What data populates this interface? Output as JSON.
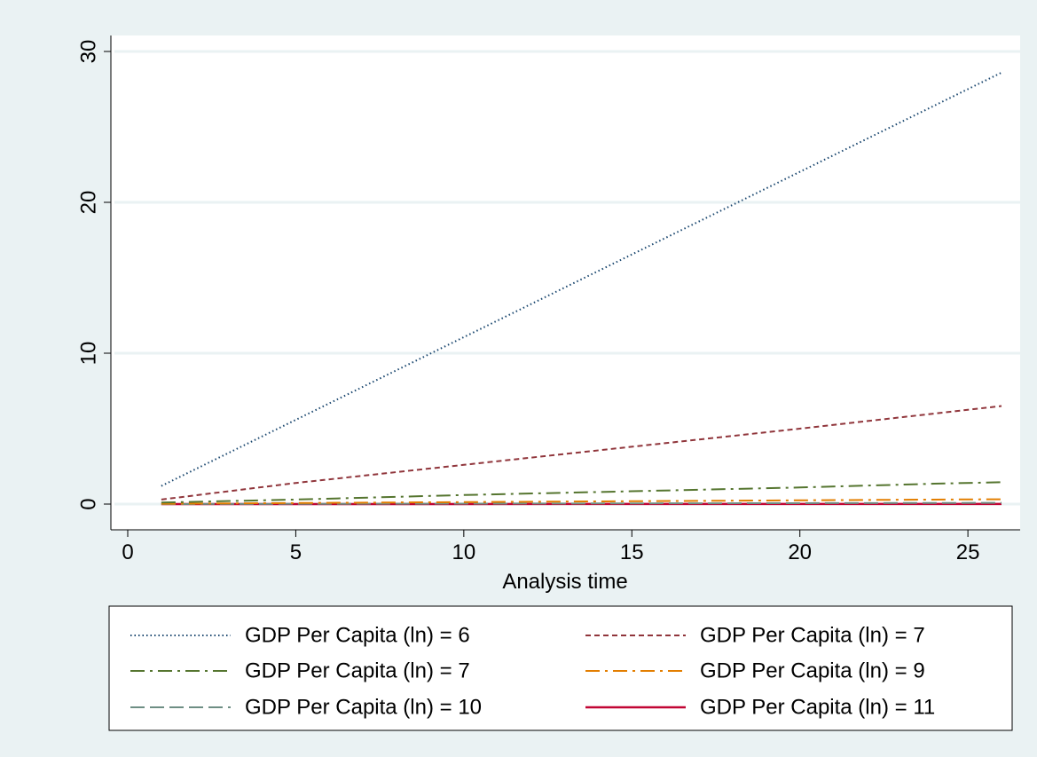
{
  "chart_data": {
    "type": "line",
    "title": "",
    "xlabel": "Analysis time",
    "ylabel": "",
    "xlim": [
      0,
      26
    ],
    "ylim": [
      0,
      30
    ],
    "x_ticks": [
      0,
      5,
      10,
      15,
      20,
      25
    ],
    "y_ticks": [
      0,
      10,
      20,
      30
    ],
    "grid": "horizontal",
    "legend_position": "bottom",
    "legend_columns": 2,
    "colors": {
      "background": "#eaf2f3",
      "plot_background": "#ffffff",
      "grid": "#eaf2f3"
    },
    "series": [
      {
        "name": "GDP Per Capita (ln) = 6",
        "color": "#1a476f",
        "style": "dot",
        "x": [
          1,
          26
        ],
        "y": [
          1.2,
          28.6
        ]
      },
      {
        "name": "GDP Per Capita (ln) = 7",
        "color": "#90353b",
        "style": "dash",
        "x": [
          1,
          5,
          10,
          15,
          20,
          26
        ],
        "y": [
          0.3,
          1.4,
          2.6,
          3.8,
          5.0,
          6.5
        ]
      },
      {
        "name": "GDP Per Capita (ln) = 7",
        "color": "#55752f",
        "style": "longdash-dot",
        "x": [
          1,
          5,
          10,
          15,
          20,
          24,
          26
        ],
        "y": [
          0.1,
          0.3,
          0.6,
          0.85,
          1.1,
          1.35,
          1.45
        ]
      },
      {
        "name": "GDP Per Capita (ln) = 9",
        "color": "#e37e00",
        "style": "longdash-dot",
        "x": [
          1,
          5,
          10,
          15,
          20,
          26
        ],
        "y": [
          0.02,
          0.07,
          0.13,
          0.19,
          0.25,
          0.32
        ]
      },
      {
        "name": "GDP Per Capita (ln) = 10",
        "color": "#6e8e84",
        "style": "longdash",
        "x": [
          1,
          26
        ],
        "y": [
          0.0,
          0.08
        ]
      },
      {
        "name": "GDP Per Capita (ln) = 11",
        "color": "#c10534",
        "style": "solid",
        "x": [
          1,
          26
        ],
        "y": [
          0.0,
          0.01
        ]
      }
    ]
  }
}
